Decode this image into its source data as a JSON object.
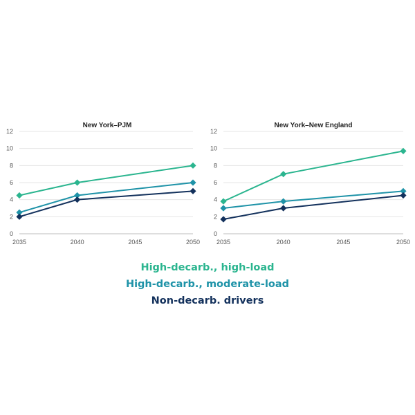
{
  "chart_data": [
    {
      "type": "line",
      "title": "New York–PJM",
      "x": [
        2035,
        2040,
        2045,
        2050
      ],
      "xlim": [
        2035,
        2050
      ],
      "ylim": [
        0,
        12
      ],
      "yticks": [
        0,
        2,
        4,
        6,
        8,
        10,
        12
      ],
      "grid": true,
      "series": [
        {
          "name": "High-decarb., high-load",
          "color": "#2bb58f",
          "x": [
            2035,
            2040,
            2050
          ],
          "values": [
            4.5,
            6.0,
            8.0
          ]
        },
        {
          "name": "High-decarb., moderate-load",
          "color": "#1f93a8",
          "x": [
            2035,
            2040,
            2050
          ],
          "values": [
            2.5,
            4.5,
            6.0
          ]
        },
        {
          "name": "Non-decarb. drivers",
          "color": "#13315c",
          "x": [
            2035,
            2040,
            2050
          ],
          "values": [
            2.0,
            4.0,
            5.0
          ]
        }
      ]
    },
    {
      "type": "line",
      "title": "New York–New England",
      "x": [
        2035,
        2040,
        2045,
        2050
      ],
      "xlim": [
        2035,
        2050
      ],
      "ylim": [
        0,
        12
      ],
      "yticks": [
        0,
        2,
        4,
        6,
        8,
        10,
        12
      ],
      "grid": true,
      "series": [
        {
          "name": "High-decarb., high-load",
          "color": "#2bb58f",
          "x": [
            2035,
            2040,
            2050
          ],
          "values": [
            3.8,
            7.0,
            9.7
          ]
        },
        {
          "name": "High-decarb., moderate-load",
          "color": "#1f93a8",
          "x": [
            2035,
            2040,
            2050
          ],
          "values": [
            3.0,
            3.8,
            5.0
          ]
        },
        {
          "name": "Non-decarb. drivers",
          "color": "#13315c",
          "x": [
            2035,
            2040,
            2050
          ],
          "values": [
            1.7,
            3.0,
            4.5
          ]
        }
      ]
    }
  ],
  "legend": {
    "placement": "bottom",
    "items": [
      {
        "label": "High-decarb., high-load",
        "color": "#2bb58f"
      },
      {
        "label": "High-decarb., moderate-load",
        "color": "#1f93a8"
      },
      {
        "label": "Non-decarb. drivers",
        "color": "#13315c"
      }
    ]
  }
}
